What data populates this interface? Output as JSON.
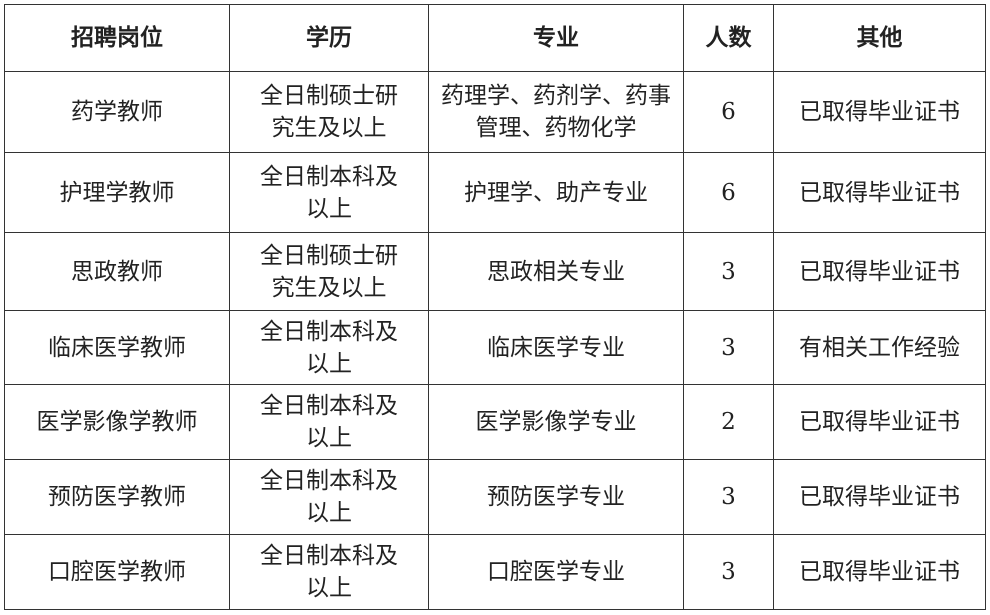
{
  "headers": [
    "招聘岗位",
    "学历",
    "专业",
    "人数",
    "其他"
  ],
  "rows": [
    [
      "药学教师",
      "全日制硕士研究生及以上",
      "药理学、药剂学、药事管理、药物化学",
      "6",
      "已取得毕业证书"
    ],
    [
      "护理学教师",
      "全日制本科及以上",
      "护理学、助产专业",
      "6",
      "已取得毕业证书"
    ],
    [
      "思政教师",
      "全日制硕士研究生及以上",
      "思政相关专业",
      "3",
      "已取得毕业证书"
    ],
    [
      "临床医学教师",
      "全日制本科及以上",
      "临床医学专业",
      "3",
      "有相关工作经验"
    ],
    [
      "医学影像学教师",
      "全日制本科及以上",
      "医学影像学专业",
      "2",
      "已取得毕业证书"
    ],
    [
      "预防医学教师",
      "全日制本科及以上",
      "预防医学专业",
      "3",
      "已取得毕业证书"
    ],
    [
      "口腔医学教师",
      "全日制本科及以上",
      "口腔医学专业",
      "3",
      "已取得毕业证书"
    ]
  ]
}
